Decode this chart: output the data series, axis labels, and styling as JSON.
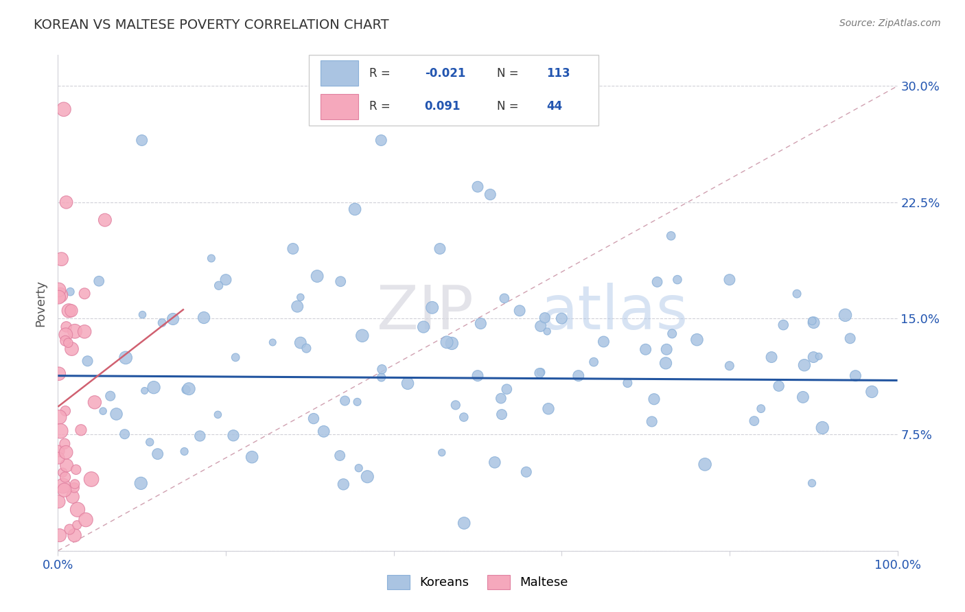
{
  "title": "KOREAN VS MALTESE POVERTY CORRELATION CHART",
  "source_text": "Source: ZipAtlas.com",
  "ylabel": "Poverty",
  "xlim": [
    0.0,
    1.0
  ],
  "ylim": [
    0.0,
    0.32
  ],
  "ytick_positions": [
    0.075,
    0.15,
    0.225,
    0.3
  ],
  "ytick_labels": [
    "7.5%",
    "15.0%",
    "22.5%",
    "30.0%"
  ],
  "xtick_positions": [
    0.0,
    0.2,
    0.4,
    0.6,
    0.8,
    1.0
  ],
  "xtick_labels": [
    "0.0%",
    "",
    "",
    "",
    "",
    "100.0%"
  ],
  "korean_R": -0.021,
  "korean_N": 113,
  "maltese_R": 0.091,
  "maltese_N": 44,
  "korean_color": "#aac4e2",
  "maltese_color": "#f5a8bc",
  "korean_line_color": "#2255a0",
  "maltese_line_color": "#d06070",
  "diagonal_color": "#d0a0b0",
  "grid_color": "#d0d0d8",
  "watermark_zip": "ZIP",
  "watermark_atlas": "atlas",
  "korean_line_y_intercept": 0.113,
  "korean_line_slope": -0.003,
  "maltese_line_y_intercept": 0.093,
  "maltese_line_slope": 0.42
}
